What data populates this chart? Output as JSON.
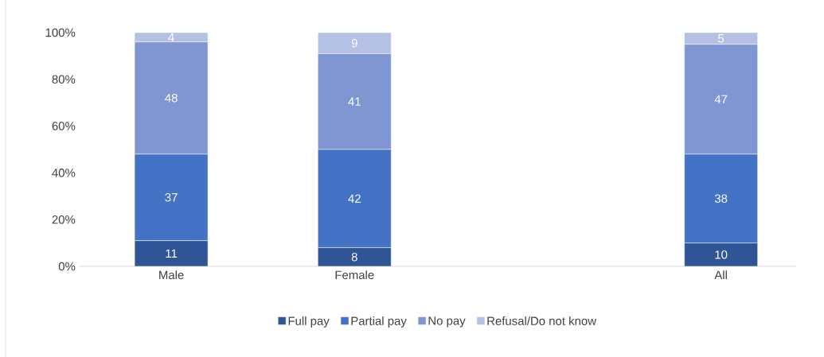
{
  "chart_data": {
    "type": "bar",
    "stacked": true,
    "categories": [
      "Male",
      "Female",
      null,
      "All"
    ],
    "series": [
      {
        "name": "Full pay",
        "color": "#2f5597",
        "values": [
          11,
          8,
          null,
          10
        ]
      },
      {
        "name": "Partial pay",
        "color": "#4472c4",
        "values": [
          37,
          42,
          null,
          38
        ]
      },
      {
        "name": "No pay",
        "color": "#7f96d3",
        "values": [
          48,
          41,
          null,
          47
        ]
      },
      {
        "name": "Refusal/Do not know",
        "color": "#b4c1e5",
        "values": [
          4,
          9,
          null,
          5
        ]
      }
    ],
    "ylim": [
      0,
      100
    ],
    "yticks": [
      {
        "value": 0,
        "label": "0%"
      },
      {
        "value": 20,
        "label": "20%"
      },
      {
        "value": 40,
        "label": "40%"
      },
      {
        "value": 60,
        "label": "60%"
      },
      {
        "value": 80,
        "label": "80%"
      },
      {
        "value": 100,
        "label": "100%"
      }
    ],
    "data_labels": true,
    "legend": "bottom",
    "grid": false
  }
}
